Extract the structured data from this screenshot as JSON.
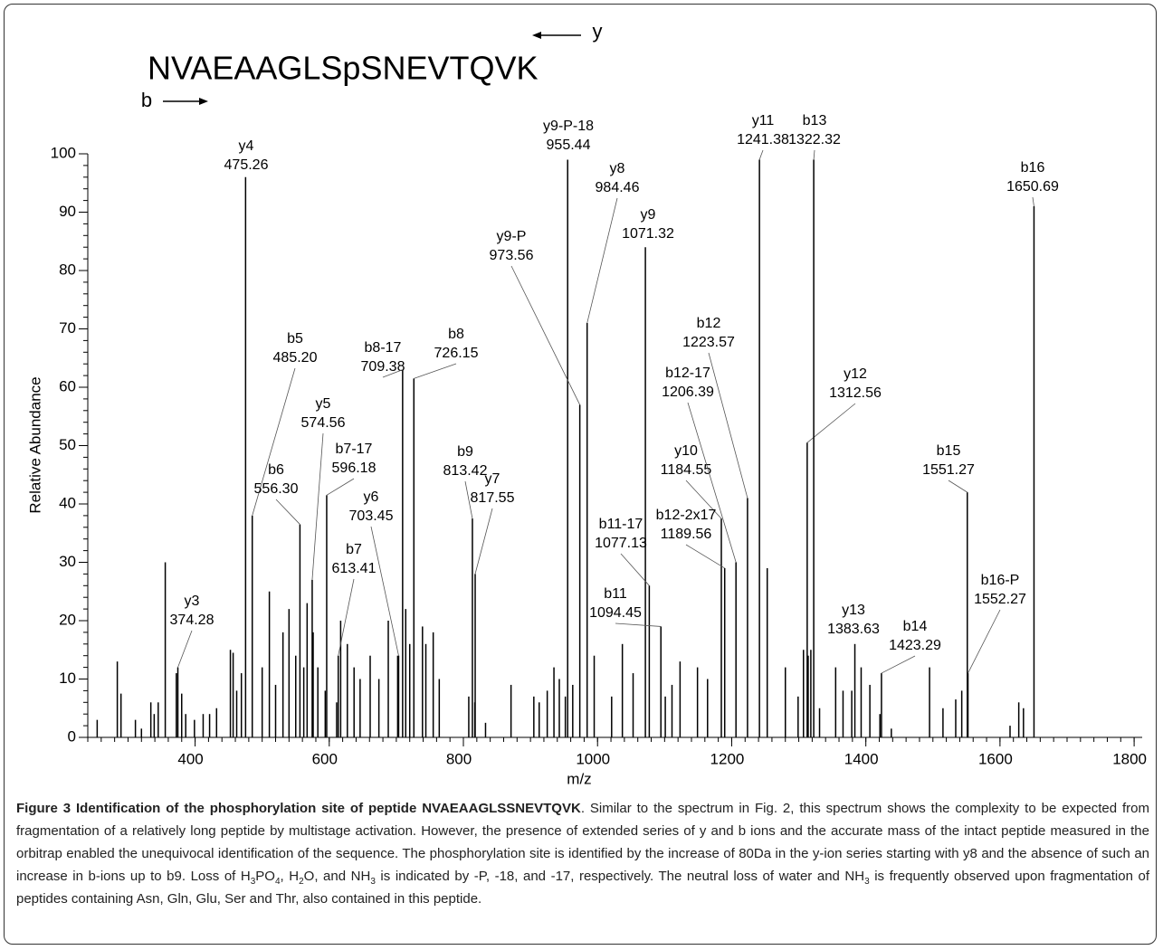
{
  "chart_data": {
    "type": "stem",
    "sequence": "NVAEAAGLSpSNEVTQVK",
    "y_series_label": "y",
    "b_series_label": "b",
    "ylabel": "Relative Abundance",
    "xlabel": "m/z",
    "xlim": [
      240,
      1812
    ],
    "xticks": [
      400,
      600,
      800,
      1000,
      1200,
      1400,
      1600,
      1800
    ],
    "xminor": 20,
    "ylim": [
      0,
      100
    ],
    "yticks": [
      0,
      10,
      20,
      30,
      40,
      50,
      60,
      70,
      80,
      90,
      100
    ],
    "yminor": 2,
    "color": "#000000",
    "x": [
      254,
      284,
      289.5,
      311,
      320,
      334,
      339,
      345,
      355.5,
      372,
      380,
      386,
      399,
      412,
      421.6,
      432,
      452.6,
      456.7,
      462,
      469,
      500,
      510.7,
      520,
      531,
      540,
      550,
      562,
      567,
      576,
      583,
      594,
      611,
      617,
      627,
      637,
      646,
      661,
      674,
      688,
      702,
      714,
      720,
      739,
      744,
      755,
      764,
      808,
      817,
      833,
      871,
      905,
      913,
      925,
      935,
      943,
      952,
      963,
      995,
      1021,
      1037,
      1053,
      1101,
      1111,
      1123,
      1149,
      1164,
      1253,
      1280,
      1299,
      1307,
      1314,
      1318,
      1331,
      1355,
      1366,
      1379,
      1393,
      1406,
      1421,
      1438,
      1495,
      1515,
      1534,
      1543,
      1615,
      1628,
      1635
    ],
    "values": [
      3,
      13,
      7.5,
      3,
      1.5,
      6,
      4,
      6,
      30,
      11,
      7.5,
      4,
      3,
      4,
      4,
      5,
      15,
      14.5,
      8,
      11,
      12,
      25,
      9,
      18,
      22,
      14,
      12,
      23,
      18,
      12,
      8,
      6,
      20,
      16,
      12,
      10,
      14,
      10,
      20,
      14,
      22,
      16,
      19,
      16,
      18,
      10,
      7,
      6,
      2.5,
      9,
      7,
      6,
      8,
      12,
      10,
      7,
      9,
      14,
      7,
      16,
      11,
      7,
      9,
      13,
      12,
      10,
      29,
      12,
      7,
      15,
      14,
      15,
      5,
      12,
      8,
      8,
      12,
      9,
      4,
      1.5,
      12,
      5,
      6.5,
      8,
      2,
      6,
      5
    ],
    "annotations": [
      {
        "ion": "y3",
        "mz": 374.28,
        "intensity": 12
      },
      {
        "ion": "y4",
        "mz": 475.26,
        "intensity": 96
      },
      {
        "ion": "b5",
        "mz": {
          "value": 485.2,
          "label": "485.20"
        },
        "intensity": 38
      },
      {
        "ion": "y5",
        "mz": 574.56,
        "intensity": 27
      },
      {
        "ion": "b6",
        "mz": {
          "value": 556.3,
          "label": "556.30"
        },
        "intensity": 36.5
      },
      {
        "ion": "b7-17",
        "mz": 596.18,
        "intensity": 41.5
      },
      {
        "ion": "b7",
        "mz": 613.41,
        "intensity": 14
      },
      {
        "ion": "y6",
        "mz": 703.45,
        "intensity": 14
      },
      {
        "ion": "b8-17",
        "mz": 709.38,
        "intensity": 63
      },
      {
        "ion": "b8",
        "mz": 726.15,
        "intensity": 61.5
      },
      {
        "ion": "b9",
        "mz": 813.42,
        "intensity": 37.5
      },
      {
        "ion": "y7",
        "mz": 817.55,
        "intensity": 28
      },
      {
        "ion": "y9-P-18",
        "mz": 955.44,
        "intensity": 99
      },
      {
        "ion": "y9-P",
        "mz": 973.56,
        "intensity": 57
      },
      {
        "ion": "y8",
        "mz": 984.46,
        "intensity": 71
      },
      {
        "ion": "y9",
        "mz": 1071.32,
        "intensity": 84
      },
      {
        "ion": "b11-17",
        "mz": 1077.13,
        "intensity": 26
      },
      {
        "ion": "b11",
        "mz": 1094.45,
        "intensity": 19
      },
      {
        "ion": "y10",
        "mz": 1184.55,
        "intensity": 37.5
      },
      {
        "ion": "b12-2x17",
        "mz": 1189.56,
        "intensity": 29
      },
      {
        "ion": "b12-17",
        "mz": 1206.39,
        "intensity": 30
      },
      {
        "ion": "b12",
        "mz": 1223.57,
        "intensity": 41
      },
      {
        "ion": "y11",
        "mz": 1241.38,
        "intensity": 99
      },
      {
        "ion": "y12",
        "mz": 1312.56,
        "intensity": 50.5
      },
      {
        "ion": "b13",
        "mz": 1322.32,
        "intensity": 99
      },
      {
        "ion": "y13",
        "mz": 1383.63,
        "intensity": 16
      },
      {
        "ion": "b14",
        "mz": 1423.29,
        "intensity": 11
      },
      {
        "ion": "b15",
        "mz": 1551.27,
        "intensity": 42
      },
      {
        "ion": "b16-P",
        "mz": 1552.27,
        "intensity": 11
      },
      {
        "ion": "b16",
        "mz": 1650.69,
        "intensity": 91
      }
    ]
  },
  "caption": {
    "title": "Figure 3 Identification of the phosphorylation site of peptide NVAEAAGLSSNEVTQVK",
    "body": [
      {
        "text": ". Similar to the spectrum in Fig. 2, this spectrum shows the complexity to be expected from fragmentation of a relatively long peptide by multistage activation. However, the presence of extended series of y and b ions and the accurate mass of the intact peptide measured in the orbitrap enabled the unequivocal identification of the sequence. The phosphorylation site is identified by the increase of 80Da in the y-ion series starting with y8 and the absence of such an increase in b-ions up to b9. Loss of H"
      },
      {
        "text": "3",
        "sub": true
      },
      {
        "text": "PO"
      },
      {
        "text": "4",
        "sub": true
      },
      {
        "text": ", H"
      },
      {
        "text": "2",
        "sub": true
      },
      {
        "text": "O, and NH"
      },
      {
        "text": "3",
        "sub": true
      },
      {
        "text": " is indicated by -P, -18, and -17, respectively. The neutral loss of water and NH"
      },
      {
        "text": "3",
        "sub": true
      },
      {
        "text": " is frequently observed upon fragmentation of peptides containing Asn, Gln, Glu, Ser and Thr, also contained in this peptide."
      }
    ]
  }
}
